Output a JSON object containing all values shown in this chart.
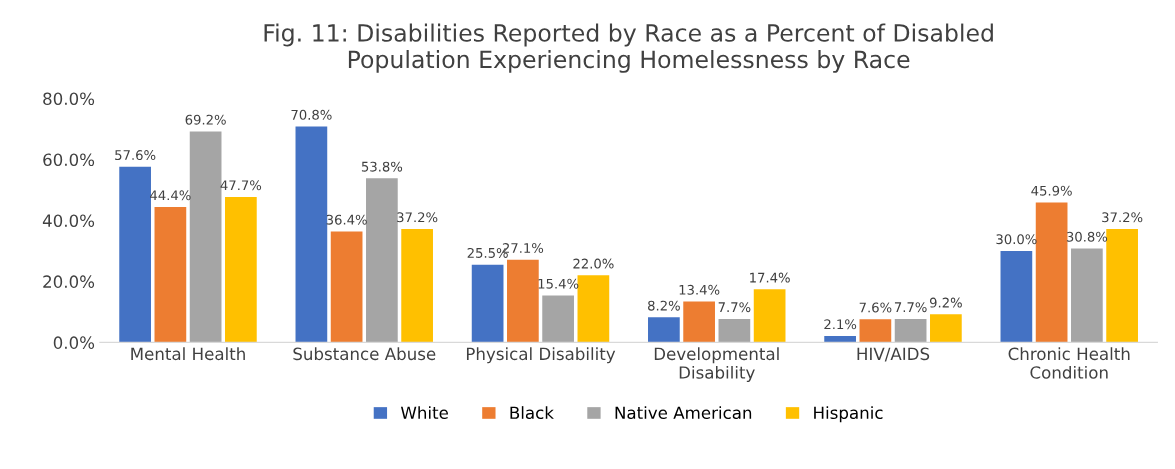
{
  "chart_data": {
    "type": "bar",
    "title": "Fig. 11: Disabilities Reported by Race as a Percent of Disabled\nPopulation Experiencing Homelessness by Race",
    "categories": [
      "Mental Health",
      "Substance Abuse",
      "Physical Disability",
      "Developmental\nDisability",
      "HIV/AIDS",
      "Chronic Health\nCondition"
    ],
    "series": [
      {
        "name": "White",
        "color": "#4472c4",
        "values": [
          57.6,
          70.8,
          25.5,
          8.2,
          2.1,
          30.0
        ],
        "value_labels": [
          "57.6%",
          "70.8%",
          "25.5%",
          "8.2%",
          "2.1%",
          "30.0%"
        ]
      },
      {
        "name": "Black",
        "color": "#ed7d31",
        "values": [
          44.4,
          36.4,
          27.1,
          13.4,
          7.6,
          45.9
        ],
        "value_labels": [
          "44.4%",
          "36.4%",
          "27.1%",
          "13.4%",
          "7.6%",
          "45.9%"
        ]
      },
      {
        "name": "Native American",
        "color": "#a5a5a5",
        "values": [
          69.2,
          53.8,
          15.4,
          7.7,
          7.7,
          30.8
        ],
        "value_labels": [
          "69.2%",
          "53.8%",
          "15.4%",
          "7.7%",
          "7.7%",
          "30.8%"
        ]
      },
      {
        "name": "Hispanic",
        "color": "#ffc000",
        "values": [
          47.7,
          37.2,
          22.0,
          17.4,
          9.2,
          37.2
        ],
        "value_labels": [
          "47.7%",
          "37.2%",
          "22.0%",
          "17.4%",
          "9.2%",
          "37.2%"
        ]
      }
    ],
    "ylim": [
      0,
      80
    ],
    "yticks": [
      {
        "value": 0,
        "label": "0.0%"
      },
      {
        "value": 20,
        "label": "20.0%"
      },
      {
        "value": 40,
        "label": "40.0%"
      },
      {
        "value": 60,
        "label": "60.0%"
      },
      {
        "value": 80,
        "label": "80.0%"
      }
    ],
    "grid": false,
    "legend": "bottom"
  }
}
